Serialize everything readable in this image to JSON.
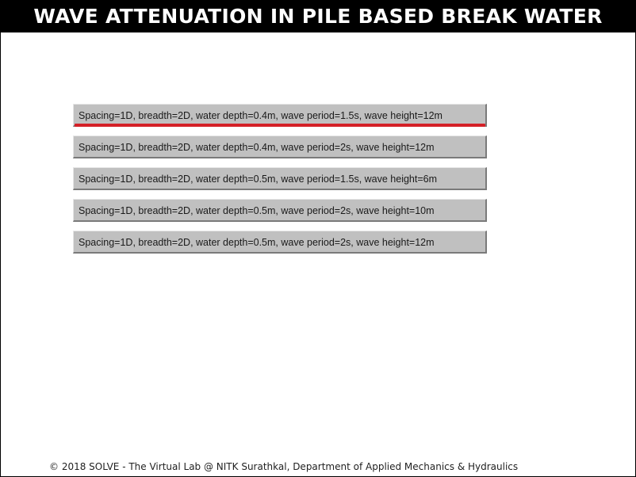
{
  "header": {
    "title": "WAVE ATTENUATION IN PILE BASED BREAK WATER"
  },
  "options": [
    {
      "label": "Spacing=1D, breadth=2D, water depth=0.4m, wave period=1.5s, wave height=12m",
      "selected": true
    },
    {
      "label": "Spacing=1D, breadth=2D, water depth=0.4m, wave period=2s, wave height=12m",
      "selected": false
    },
    {
      "label": "Spacing=1D, breadth=2D, water depth=0.5m, wave period=1.5s, wave height=6m",
      "selected": false
    },
    {
      "label": "Spacing=1D, breadth=2D, water depth=0.5m, wave period=2s, wave height=10m",
      "selected": false
    },
    {
      "label": "Spacing=1D, breadth=2D, water depth=0.5m, wave period=2s, wave height=12m",
      "selected": false
    }
  ],
  "footer": {
    "text": "© 2018 SOLVE - The Virtual Lab @ NITK Surathkal, Department of Applied Mechanics & Hydraulics"
  },
  "colors": {
    "header_background": "#000000",
    "header_text": "#ffffff",
    "button_face": "#c0c0c0",
    "selected_accent": "#d42027"
  }
}
